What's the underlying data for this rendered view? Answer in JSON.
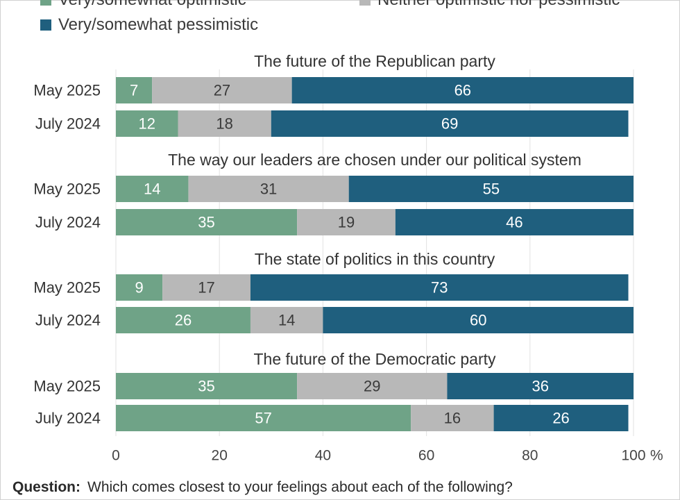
{
  "legend": [
    {
      "label": "Very/somewhat optimistic",
      "color": "#6fa387"
    },
    {
      "label": "Neither optimistic nor pessimistic",
      "color": "#b8b8b8"
    },
    {
      "label": "Very/somewhat pessimistic",
      "color": "#1f5f7e"
    }
  ],
  "chart_data": {
    "type": "bar",
    "orientation": "horizontal",
    "stacked": true,
    "xlim": [
      0,
      100
    ],
    "x_ticks": [
      "0",
      "20",
      "40",
      "60",
      "80",
      "100"
    ],
    "x_unit": "%",
    "grid": true,
    "legend_position": "top",
    "series_names": [
      "Very/somewhat optimistic",
      "Neither optimistic nor pessimistic",
      "Very/somewhat pessimistic"
    ],
    "groups": [
      {
        "title": "The future of the Republican party",
        "rows": [
          {
            "label": "May 2025",
            "values": [
              7,
              27,
              66
            ]
          },
          {
            "label": "July 2024",
            "values": [
              12,
              18,
              69
            ]
          }
        ]
      },
      {
        "title": "The way our leaders are chosen under our political system",
        "rows": [
          {
            "label": "May 2025",
            "values": [
              14,
              31,
              55
            ]
          },
          {
            "label": "July 2024",
            "values": [
              35,
              19,
              46
            ]
          }
        ]
      },
      {
        "title": "The state of politics in this country",
        "rows": [
          {
            "label": "May 2025",
            "values": [
              9,
              17,
              73
            ]
          },
          {
            "label": "July 2024",
            "values": [
              26,
              14,
              60
            ]
          }
        ]
      },
      {
        "title": "The future of the Democratic party",
        "rows": [
          {
            "label": "May 2025",
            "values": [
              35,
              29,
              36
            ]
          },
          {
            "label": "July 2024",
            "values": [
              57,
              16,
              26
            ]
          }
        ]
      }
    ]
  },
  "footnote": {
    "label": "Question:",
    "text": "Which comes closest to your feelings about each of the following?"
  }
}
